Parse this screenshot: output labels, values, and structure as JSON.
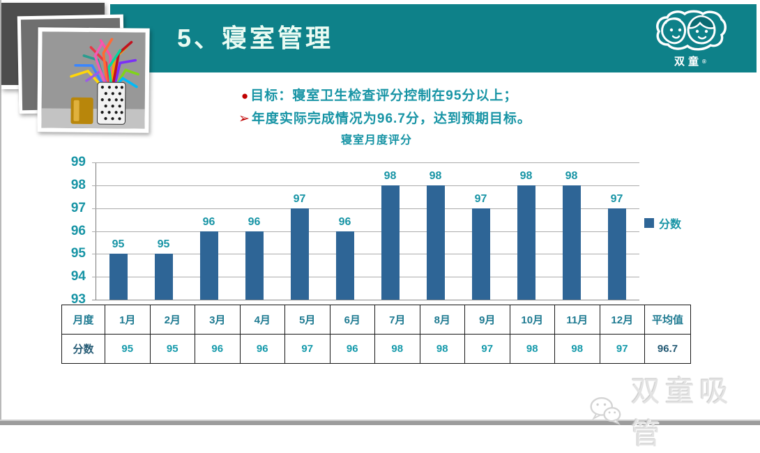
{
  "header": {
    "title": "5、寝室管理",
    "logo": {
      "brand": "双童",
      "registered": "®"
    }
  },
  "objectives": {
    "bullet1": "●",
    "line1": "目标：寝室卫生检查评分控制在95分以上；",
    "bullet2": "➢",
    "line2": "年度实际完成情况为96.7分，达到预期目标。"
  },
  "chart_data": {
    "type": "bar",
    "title": "寝室月度评分",
    "categories": [
      "1月",
      "2月",
      "3月",
      "4月",
      "5月",
      "6月",
      "7月",
      "8月",
      "9月",
      "10月",
      "11月",
      "12月"
    ],
    "values": [
      95,
      95,
      96,
      96,
      97,
      96,
      98,
      98,
      97,
      98,
      98,
      97
    ],
    "xlabel": "",
    "ylabel": "",
    "ylim": [
      93,
      99
    ],
    "ytick_step": 1,
    "grid": true,
    "legend": [
      "分数"
    ],
    "legend_position": "right"
  },
  "table": {
    "corner_label": "月度",
    "score_row_label": "分数",
    "average_label": "平均值",
    "average_value": "96.7"
  },
  "footer": {
    "watermark": "双童吸管"
  },
  "colors": {
    "teal_band": "#0E8189",
    "text_teal": "#1794A5",
    "accent_red": "#C00000",
    "bar_blue": "#2E6596",
    "table_text": "#169AAB"
  }
}
